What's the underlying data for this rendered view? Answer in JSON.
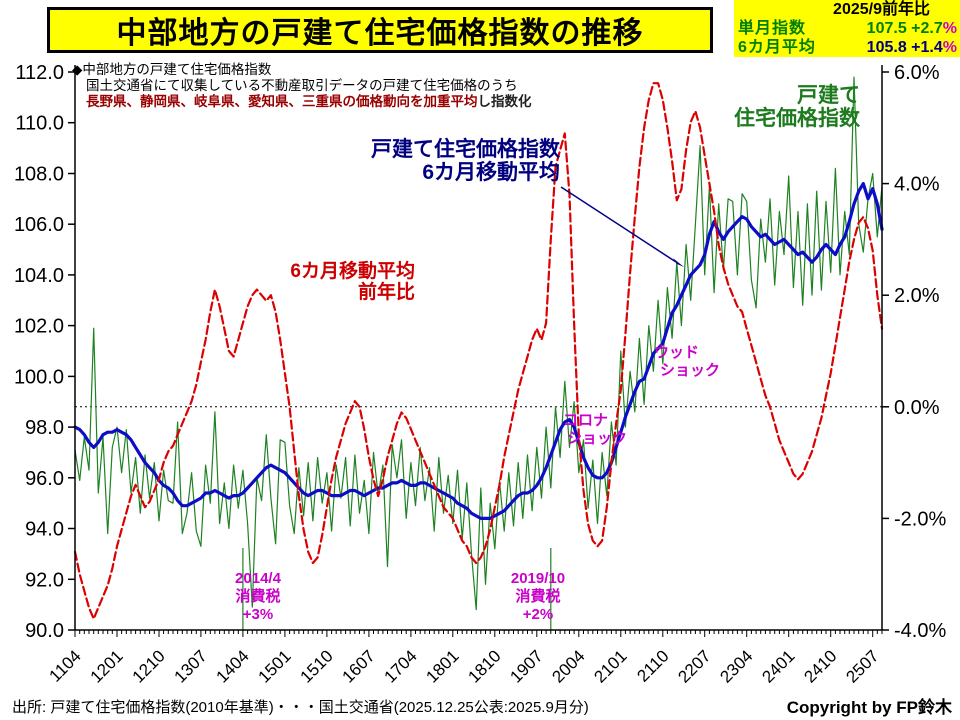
{
  "title": "中部地方の戸建て住宅価格指数の推移",
  "info_box": {
    "period_label": "2025/9前年比",
    "rows": [
      {
        "label": "単月指数",
        "value": "107.5",
        "change": "+2.7",
        "unit": "%"
      },
      {
        "label": "6カ月平均",
        "value": "105.8",
        "change": "+1.4",
        "unit": "%"
      }
    ]
  },
  "note": {
    "line1": "◆中部地方の戸建て住宅価格指数",
    "line2": "国土交通省にて収集している不動産取引データの戸建て住宅価格のうち",
    "line3_red": "長野県、静岡県、岐阜県、愛知県、三重県の価格動向を加重平均",
    "line3_black": "し指数化"
  },
  "labels": {
    "blue_line": [
      "戸建て住宅価格指数",
      "6カ月移動平均"
    ],
    "red_line": [
      "6カ月移動平均",
      "前年比"
    ],
    "green_line": [
      "戸建て",
      "住宅価格指数"
    ],
    "wood_shock": [
      "ウッド",
      "ショック"
    ],
    "corona_shock": [
      "コロナ",
      "ショック"
    ],
    "tax_2014": [
      "2014/4",
      "消費税",
      "+3%"
    ],
    "tax_2019": [
      "2019/10",
      "消費税",
      "+2%"
    ]
  },
  "source": "出所: 戸建て住宅価格指数(2010年基準)・・・国土交通省(2025.12.25公表:2025.9月分)",
  "copyright": "Copyright by FP鈴木",
  "colors": {
    "highlight_bg": "#ffff00",
    "monthly_index": "#1e8222",
    "moving_average": "#0d0dc8",
    "yoy": "#dd0000",
    "event_magenta": "#cc00cc",
    "note_red": "#990000"
  },
  "chart_data": {
    "type": "line",
    "x_unit": "month",
    "x_start": "2011/04",
    "x_end": "2025/09",
    "x_tick_every_months": 9,
    "x_tick_labels": [
      "1104",
      "1201",
      "1210",
      "1307",
      "1404",
      "1501",
      "1510",
      "1607",
      "1704",
      "1801",
      "1810",
      "1907",
      "2004",
      "2101",
      "2110",
      "2207",
      "2304",
      "2401",
      "2410",
      "2507"
    ],
    "y_left": {
      "min": 90,
      "max": 112,
      "tick_step": 2,
      "tick_labels": [
        "112.0",
        "110.0",
        "108.0",
        "106.0",
        "104.0",
        "102.0",
        "100.0",
        "98.0",
        "96.0",
        "94.0",
        "92.0",
        "90.0"
      ]
    },
    "y_right": {
      "min": -4,
      "max": 6,
      "tick_step": 2,
      "tick_labels": [
        "6.0%",
        "4.0%",
        "2.0%",
        "0.0%",
        "-2.0%",
        "-4.0%"
      ]
    },
    "zero_line_on_right_axis": 0.0,
    "grid": "off",
    "event_markers": [
      {
        "index": 36,
        "x": "2014/04",
        "label": "2014/4 消費税 +3%"
      },
      {
        "index": 102,
        "x": "2019/10",
        "label": "2019/10 消費税 +2%"
      }
    ],
    "series": [
      {
        "id": "monthly-index-line",
        "name": "戸建て住宅価格指数(単月)",
        "axis": "left",
        "color": "#1e8222",
        "style": "solid",
        "width": 1.2,
        "values": [
          97.1,
          95.9,
          97.6,
          96.3,
          101.9,
          95.4,
          97.6,
          93.8,
          97.2,
          98.0,
          96.2,
          97.9,
          95.4,
          96.8,
          94.6,
          96.9,
          95.2,
          96.6,
          94.3,
          96.3,
          95.1,
          95.0,
          98.2,
          93.8,
          94.6,
          96.2,
          93.9,
          93.3,
          96.5,
          95.0,
          98.6,
          94.2,
          95.8,
          94.0,
          96.5,
          94.8,
          96.3,
          94.2,
          90.9,
          96.0,
          95.1,
          97.7,
          95.2,
          93.4,
          97.5,
          97.4,
          94.9,
          93.8,
          96.4,
          94.5,
          96.6,
          94.3,
          96.8,
          95.0,
          96.2,
          93.9,
          96.5,
          95.2,
          96.8,
          94.1,
          96.9,
          94.6,
          95.9,
          93.8,
          97.0,
          95.3,
          96.5,
          92.5,
          97.3,
          96.0,
          97.5,
          94.4,
          96.6,
          94.9,
          97.2,
          95.1,
          96.4,
          93.9,
          96.8,
          94.6,
          96.1,
          94.2,
          96.3,
          93.6,
          95.8,
          93.0,
          90.8,
          95.6,
          91.8,
          95.0,
          93.2,
          95.9,
          93.9,
          96.2,
          94.1,
          96.6,
          94.4,
          96.9,
          94.7,
          97.2,
          95.2,
          98.0,
          95.6,
          98.8,
          96.8,
          99.8,
          97.2,
          99.0,
          96.2,
          97.5,
          94.8,
          96.7,
          94.2,
          97.0,
          95.3,
          98.2,
          96.5,
          101.0,
          98.0,
          100.2,
          98.6,
          101.5,
          98.9,
          102.0,
          100.2,
          103.0,
          100.5,
          103.5,
          101.5,
          104.5,
          102.0,
          105.2,
          103.0,
          106.0,
          109.1,
          104.0,
          107.5,
          103.3,
          106.8,
          104.2,
          107.0,
          106.9,
          104.0,
          107.2,
          106.9,
          103.8,
          102.7,
          106.2,
          104.5,
          107.0,
          103.6,
          106.5,
          104.8,
          107.9,
          103.5,
          106.5,
          102.8,
          106.8,
          103.2,
          107.3,
          103.4,
          106.9,
          104.1,
          108.2,
          104.0,
          106.5,
          104.8,
          111.8,
          106.0,
          104.9,
          107.0,
          108.0,
          105.5,
          107.5
        ]
      },
      {
        "id": "moving-average-line",
        "name": "戸建て住宅価格指数 6カ月移動平均",
        "axis": "left",
        "color": "#0d0dc8",
        "style": "solid",
        "width": 3.2,
        "values": [
          98.0,
          97.9,
          97.7,
          97.4,
          97.2,
          97.4,
          97.7,
          97.8,
          97.8,
          97.9,
          97.8,
          97.7,
          97.5,
          97.2,
          96.9,
          96.6,
          96.4,
          96.2,
          95.9,
          95.7,
          95.6,
          95.4,
          95.1,
          94.9,
          94.9,
          95.0,
          95.1,
          95.2,
          95.4,
          95.4,
          95.5,
          95.4,
          95.3,
          95.2,
          95.3,
          95.3,
          95.4,
          95.6,
          95.8,
          96.0,
          96.2,
          96.4,
          96.5,
          96.4,
          96.3,
          96.2,
          96.0,
          95.8,
          95.6,
          95.4,
          95.3,
          95.4,
          95.5,
          95.5,
          95.4,
          95.3,
          95.3,
          95.3,
          95.4,
          95.5,
          95.5,
          95.4,
          95.3,
          95.4,
          95.5,
          95.6,
          95.6,
          95.7,
          95.8,
          95.8,
          95.9,
          95.8,
          95.7,
          95.7,
          95.8,
          95.8,
          95.7,
          95.6,
          95.5,
          95.4,
          95.3,
          95.2,
          95.0,
          94.9,
          94.8,
          94.6,
          94.5,
          94.4,
          94.4,
          94.4,
          94.5,
          94.6,
          94.7,
          94.9,
          95.1,
          95.3,
          95.4,
          95.4,
          95.5,
          95.7,
          96.0,
          96.4,
          96.9,
          97.4,
          97.9,
          98.2,
          98.3,
          98.0,
          97.4,
          96.8,
          96.4,
          96.1,
          96.0,
          96.0,
          96.2,
          96.6,
          97.2,
          97.8,
          98.4,
          98.9,
          99.4,
          99.8,
          99.9,
          100.4,
          100.9,
          101.1,
          101.3,
          101.9,
          102.5,
          102.8,
          103.2,
          103.6,
          104.0,
          104.2,
          104.4,
          104.8,
          105.6,
          106.1,
          105.7,
          105.4,
          105.7,
          105.9,
          106.1,
          106.3,
          106.2,
          105.9,
          105.7,
          105.5,
          105.6,
          105.4,
          105.2,
          105.3,
          105.4,
          105.2,
          105.0,
          104.8,
          104.9,
          104.7,
          104.5,
          104.7,
          105.0,
          105.2,
          105.0,
          104.8,
          105.2,
          105.5,
          106.1,
          106.8,
          107.3,
          107.6,
          107.0,
          107.4,
          106.8,
          105.8
        ]
      },
      {
        "id": "yoy-line",
        "name": "6カ月移動平均 前年比",
        "axis": "right",
        "color": "#dd0000",
        "style": "dashed",
        "width": 2.2,
        "values": [
          -2.6,
          -3.0,
          -3.3,
          -3.6,
          -3.8,
          -3.6,
          -3.4,
          -3.2,
          -2.9,
          -2.5,
          -2.2,
          -1.9,
          -1.6,
          -1.4,
          -1.6,
          -1.8,
          -1.7,
          -1.5,
          -1.3,
          -1.0,
          -0.8,
          -0.7,
          -0.5,
          -0.3,
          -0.1,
          0.1,
          0.4,
          0.8,
          1.2,
          1.7,
          2.1,
          1.8,
          1.4,
          1.0,
          0.9,
          1.2,
          1.5,
          1.8,
          2.0,
          2.1,
          2.0,
          1.9,
          2.0,
          1.7,
          1.2,
          0.6,
          0.0,
          -0.8,
          -1.6,
          -2.2,
          -2.6,
          -2.8,
          -2.7,
          -2.3,
          -1.8,
          -1.3,
          -0.9,
          -0.6,
          -0.3,
          -0.1,
          0.1,
          0.0,
          -0.4,
          -0.9,
          -1.3,
          -1.6,
          -1.3,
          -0.9,
          -0.6,
          -0.3,
          -0.1,
          -0.2,
          -0.4,
          -0.6,
          -0.8,
          -1.0,
          -1.2,
          -1.4,
          -1.6,
          -1.8,
          -1.9,
          -2.0,
          -2.2,
          -2.4,
          -2.5,
          -2.7,
          -2.8,
          -2.7,
          -2.5,
          -2.2,
          -1.8,
          -1.4,
          -0.9,
          -0.5,
          -0.1,
          0.3,
          0.6,
          0.9,
          1.2,
          1.4,
          1.2,
          1.5,
          3.0,
          4.3,
          4.6,
          4.9,
          3.8,
          1.5,
          -0.5,
          -1.5,
          -2.1,
          -2.4,
          -2.5,
          -2.4,
          -1.8,
          -1.0,
          -0.3,
          0.3,
          1.3,
          2.4,
          3.4,
          4.3,
          5.0,
          5.5,
          5.8,
          5.8,
          5.5,
          5.0,
          4.4,
          3.7,
          3.9,
          4.6,
          5.1,
          5.3,
          5.0,
          4.5,
          4.0,
          3.5,
          2.9,
          2.5,
          2.2,
          2.0,
          1.8,
          1.7,
          1.4,
          1.1,
          0.8,
          0.5,
          0.2,
          0.0,
          -0.3,
          -0.6,
          -0.8,
          -1.0,
          -1.2,
          -1.3,
          -1.2,
          -1.0,
          -0.8,
          -0.5,
          -0.2,
          0.2,
          0.6,
          1.1,
          1.6,
          2.1,
          2.6,
          3.0,
          3.3,
          3.4,
          3.2,
          2.8,
          2.0,
          1.4
        ]
      }
    ]
  }
}
